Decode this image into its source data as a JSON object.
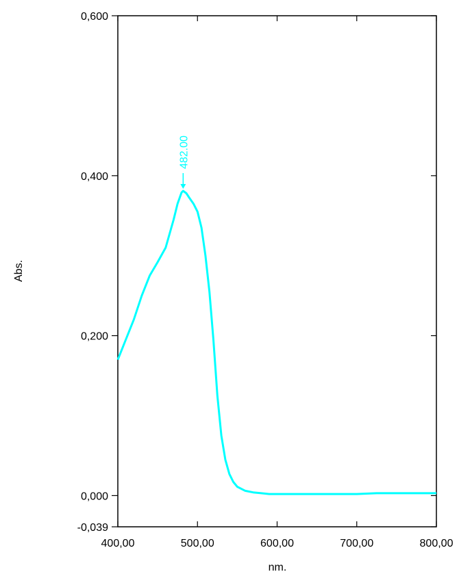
{
  "chart_data": {
    "type": "line",
    "title": "",
    "xlabel": "nm.",
    "ylabel": "Abs.",
    "xlim": [
      400,
      800
    ],
    "ylim": [
      -0.039,
      0.6
    ],
    "grid": false,
    "x_ticks": [
      {
        "value": 400,
        "label": "400,00"
      },
      {
        "value": 500,
        "label": "500,00"
      },
      {
        "value": 600,
        "label": "600,00"
      },
      {
        "value": 700,
        "label": "700,00"
      },
      {
        "value": 800,
        "label": "800,00"
      }
    ],
    "y_ticks": [
      {
        "value": 0.6,
        "label": "0,600"
      },
      {
        "value": 0.4,
        "label": "0,400"
      },
      {
        "value": 0.2,
        "label": "0,200"
      },
      {
        "value": 0.0,
        "label": "0,000"
      },
      {
        "value": -0.039,
        "label": "-0,039"
      }
    ],
    "series": [
      {
        "color": "#00ffff",
        "points": [
          [
            400,
            0.17
          ],
          [
            410,
            0.195
          ],
          [
            420,
            0.22
          ],
          [
            430,
            0.25
          ],
          [
            440,
            0.275
          ],
          [
            450,
            0.292
          ],
          [
            460,
            0.31
          ],
          [
            470,
            0.345
          ],
          [
            475,
            0.365
          ],
          [
            480,
            0.379
          ],
          [
            482,
            0.381
          ],
          [
            486,
            0.378
          ],
          [
            490,
            0.372
          ],
          [
            495,
            0.365
          ],
          [
            500,
            0.355
          ],
          [
            505,
            0.335
          ],
          [
            510,
            0.3
          ],
          [
            515,
            0.255
          ],
          [
            520,
            0.195
          ],
          [
            525,
            0.125
          ],
          [
            530,
            0.075
          ],
          [
            535,
            0.045
          ],
          [
            540,
            0.027
          ],
          [
            545,
            0.017
          ],
          [
            550,
            0.011
          ],
          [
            560,
            0.006
          ],
          [
            570,
            0.004
          ],
          [
            580,
            0.003
          ],
          [
            590,
            0.002
          ],
          [
            600,
            0.002
          ],
          [
            650,
            0.002
          ],
          [
            700,
            0.002
          ],
          [
            725,
            0.003
          ],
          [
            750,
            0.003
          ],
          [
            775,
            0.003
          ],
          [
            800,
            0.003
          ]
        ]
      }
    ],
    "annotations": [
      {
        "x": 482,
        "y": 0.381,
        "text": "482.00",
        "color": "#00ffff"
      }
    ]
  }
}
